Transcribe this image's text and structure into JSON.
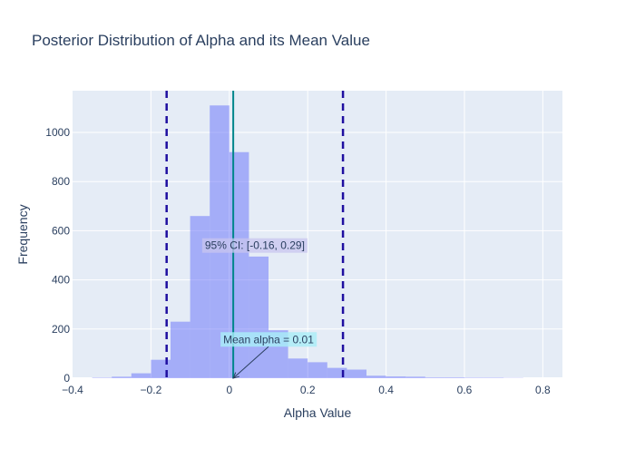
{
  "chart_data": {
    "type": "bar",
    "title": "Posterior Distribution of Alpha and its Mean Value",
    "xlabel": "Alpha Value",
    "ylabel": "Frequency",
    "xlim": [
      -0.4,
      0.85
    ],
    "ylim": [
      0,
      1170
    ],
    "xticks": [
      -0.4,
      -0.2,
      0,
      0.2,
      0.4,
      0.6,
      0.8
    ],
    "xtick_labels": [
      "−0.4",
      "−0.2",
      "0",
      "0.2",
      "0.4",
      "0.6",
      "0.8"
    ],
    "yticks": [
      0,
      200,
      400,
      600,
      800,
      1000
    ],
    "ytick_labels": [
      "0",
      "200",
      "400",
      "600",
      "800",
      "1000"
    ],
    "grid": true,
    "bin_width": 0.05,
    "bins": [
      {
        "start": -0.35,
        "value": 2
      },
      {
        "start": -0.3,
        "value": 6
      },
      {
        "start": -0.25,
        "value": 20
      },
      {
        "start": -0.2,
        "value": 75
      },
      {
        "start": -0.15,
        "value": 230
      },
      {
        "start": -0.1,
        "value": 660
      },
      {
        "start": -0.05,
        "value": 1110
      },
      {
        "start": 0.0,
        "value": 920
      },
      {
        "start": 0.05,
        "value": 495
      },
      {
        "start": 0.1,
        "value": 195
      },
      {
        "start": 0.15,
        "value": 80
      },
      {
        "start": 0.2,
        "value": 65
      },
      {
        "start": 0.25,
        "value": 42
      },
      {
        "start": 0.3,
        "value": 35
      },
      {
        "start": 0.35,
        "value": 10
      },
      {
        "start": 0.4,
        "value": 7
      },
      {
        "start": 0.45,
        "value": 6
      },
      {
        "start": 0.5,
        "value": 3
      },
      {
        "start": 0.55,
        "value": 3
      },
      {
        "start": 0.6,
        "value": 2
      },
      {
        "start": 0.65,
        "value": 2
      },
      {
        "start": 0.7,
        "value": 1
      },
      {
        "start": 0.75,
        "value": 0
      }
    ],
    "ci": {
      "low": -0.16,
      "high": 0.29,
      "label": "95% CI: [-0.16, 0.29]"
    },
    "mean": {
      "value": 0.01,
      "label": "Mean alpha = 0.01"
    },
    "colors": {
      "bars": "#636efa",
      "ci_line": "#1f0fa0",
      "mean_line": "#00868b",
      "ci_label_bg": "#c8c6ef",
      "mean_label_bg": "#a9eef8",
      "plot_bg": "#e5ecf6"
    }
  }
}
